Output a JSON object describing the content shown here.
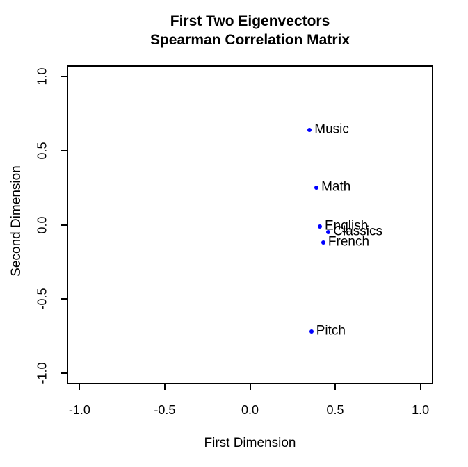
{
  "chart_data": {
    "type": "scatter",
    "title_line1": "First Two Eigenvectors",
    "title_line2": "Spearman Correlation Matrix",
    "xlabel": "First Dimension",
    "ylabel": "Second Dimension",
    "xlim": [
      -1.075,
      1.075
    ],
    "ylim": [
      -1.075,
      1.075
    ],
    "grid": false,
    "xticks": [
      -1.0,
      -0.5,
      0.0,
      0.5,
      1.0
    ],
    "yticks": [
      -1.0,
      -0.5,
      0.0,
      0.5,
      1.0
    ],
    "xtick_labels": [
      "-1.0",
      "-0.5",
      "0.0",
      "0.5",
      "1.0"
    ],
    "ytick_labels": [
      "-1.0",
      "-0.5",
      "0.0",
      "0.5",
      "1.0"
    ],
    "colors": {
      "point": "#0000ff",
      "axis": "#000000",
      "text": "#000000",
      "background": "#ffffff"
    },
    "points": [
      {
        "label": "Music",
        "x": 0.35,
        "y": 0.64
      },
      {
        "label": "Math",
        "x": 0.39,
        "y": 0.25
      },
      {
        "label": "English",
        "x": 0.41,
        "y": -0.01
      },
      {
        "label": "Classics",
        "x": 0.46,
        "y": -0.05
      },
      {
        "label": "French",
        "x": 0.43,
        "y": -0.12
      },
      {
        "label": "Pitch",
        "x": 0.36,
        "y": -0.72
      }
    ]
  }
}
